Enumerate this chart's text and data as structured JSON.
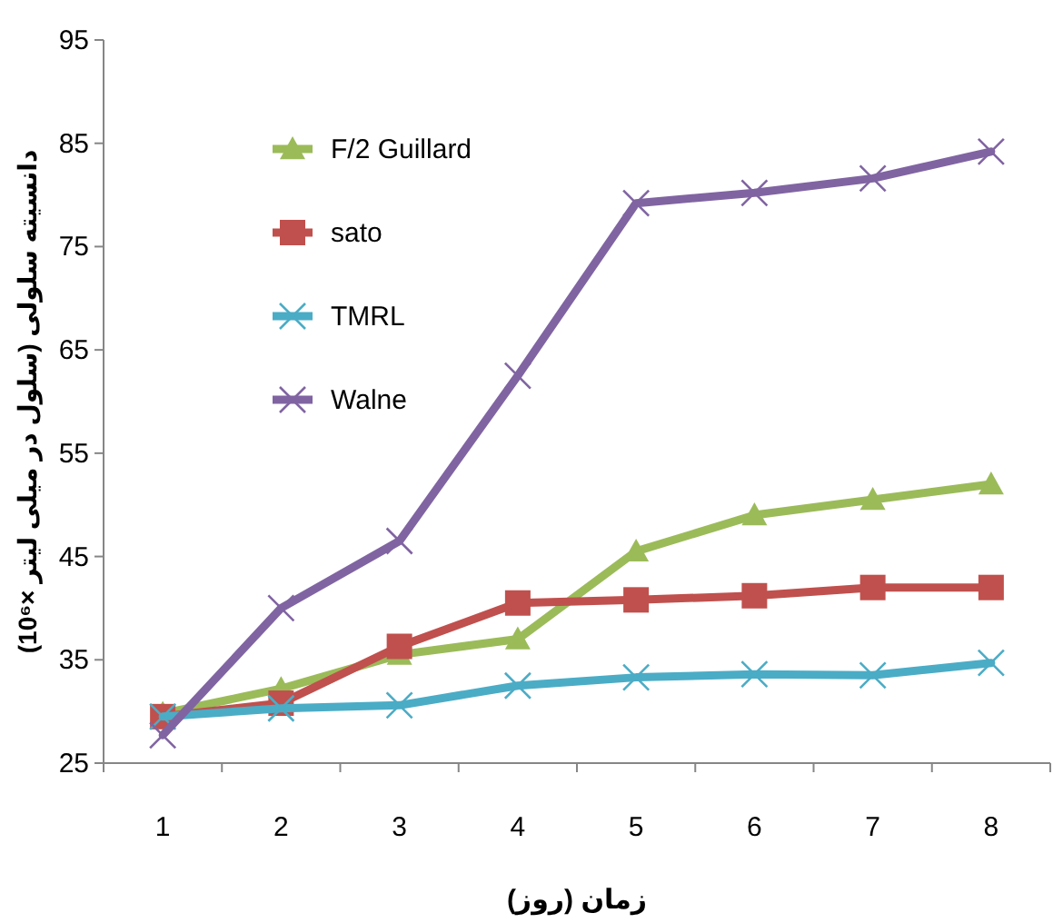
{
  "chart_data": {
    "type": "line",
    "xlabel": "زمان (روز)",
    "ylabel": "دانسیته سلولی (سلول در میلی لیتر ×10⁶)",
    "categories": [
      "1",
      "2",
      "3",
      "4",
      "5",
      "6",
      "7",
      "8"
    ],
    "ylim": [
      25,
      95
    ],
    "yticks": [
      25,
      35,
      45,
      55,
      65,
      75,
      85,
      95
    ],
    "grid": false,
    "legend": "top left",
    "line_style": "solid",
    "series": [
      {
        "name": "F/2 Guillard",
        "color": "#9bbb59",
        "marker": "triangle",
        "values": [
          29.8,
          32.2,
          35.5,
          37,
          45.5,
          49,
          50.5,
          52
        ]
      },
      {
        "name": "sato",
        "color": "#c0504d",
        "marker": "square",
        "values": [
          29.5,
          30.8,
          36.3,
          40.5,
          40.8,
          41.2,
          42,
          42
        ]
      },
      {
        "name": "TMRL",
        "color": "#4bacc6",
        "marker": "cross",
        "values": [
          29.5,
          30.3,
          30.6,
          32.5,
          33.3,
          33.6,
          33.5,
          34.7
        ]
      },
      {
        "name": "Walne",
        "color": "#8064a2",
        "marker": "cross",
        "values": [
          27.7,
          40,
          46.5,
          62.5,
          79.2,
          80.2,
          81.6,
          84.2
        ]
      }
    ]
  }
}
